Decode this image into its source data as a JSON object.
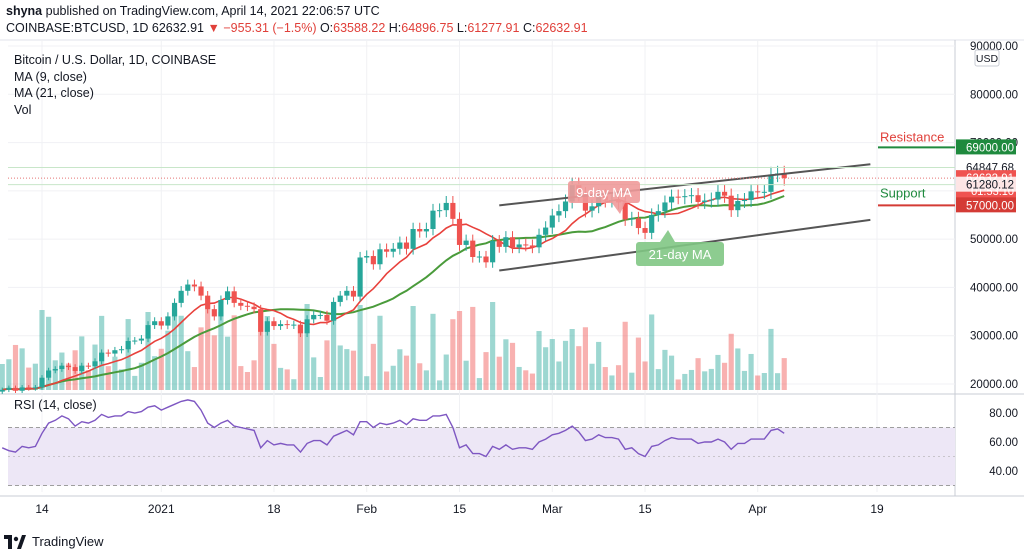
{
  "header": {
    "publisher": "shyna",
    "published_line": "published on TradingView.com, April 14, 2021 22:06:57 UTC",
    "symbol": "COINBASE:BTCUSD, 1D",
    "last": "62632.91",
    "change": "−955.31 (−1.5%)",
    "ohlc": {
      "o": "63588.22",
      "h": "64896.75",
      "l": "61277.91",
      "c": "62632.91"
    }
  },
  "legend": {
    "title": "Bitcoin / U.S. Dollar, 1D, COINBASE",
    "ma9": "MA (9, close)",
    "ma21": "MA (21, close)",
    "vol": "Vol"
  },
  "rsi_label": "RSI (14, close)",
  "footer": {
    "brand": "TradingView"
  },
  "colors": {
    "up": "#26a69a",
    "down": "#ef5350",
    "ma9": "#e8413c",
    "ma21": "#4a9b3b",
    "rsi": "#7e57c2",
    "rsi_band": "#ede7f6",
    "channel": "#555555",
    "resistance": "#1f8a3e",
    "support_line": "#d43b35",
    "price_line": "#e57373"
  },
  "chart_data": [
    {
      "type": "candlestick",
      "title": "Bitcoin / U.S. Dollar, 1D, COINBASE",
      "currency": "USD",
      "y_ticks": [
        20000,
        30000,
        40000,
        50000,
        60000,
        70000,
        80000,
        90000
      ],
      "y_tick_labels": [
        "20000.00",
        "30000.00",
        "40000.00",
        "50000.00",
        "60000.00",
        "70000.00",
        "80000.00",
        "90000.00"
      ],
      "x_tick_labels": [
        "14",
        "2021",
        "18",
        "Feb",
        "15",
        "Mar",
        "15",
        "Apr",
        "19"
      ],
      "x_tick_dates": [
        "2020-12-14",
        "2021-01-01",
        "2021-01-18",
        "2021-02-01",
        "2021-02-15",
        "2021-03-01",
        "2021-03-15",
        "2021-04-01",
        "2021-04-19"
      ],
      "first_date": "2020-12-08",
      "last_date": "2021-04-14",
      "close": [
        18800,
        19200,
        18600,
        19300,
        19100,
        19300,
        21300,
        22800,
        23100,
        23800,
        23500,
        22700,
        23800,
        23700,
        24700,
        26500,
        26300,
        27000,
        27200,
        28900,
        29000,
        29400,
        32200,
        33000,
        32100,
        34000,
        36800,
        39300,
        40600,
        40200,
        38300,
        35500,
        34000,
        37400,
        39200,
        36800,
        36200,
        36000,
        35500,
        30800,
        33000,
        32000,
        32400,
        32200,
        32300,
        30500,
        33400,
        34300,
        34300,
        33100,
        37000,
        38300,
        39300,
        38100,
        46200,
        46500,
        44800,
        47900,
        47400,
        48000,
        49300,
        48000,
        52100,
        51600,
        52100,
        55900,
        56000,
        57500,
        54200,
        48800,
        49700,
        46300,
        46400,
        45200,
        49600,
        48400,
        50400,
        48300,
        48900,
        48700,
        48300,
        50900,
        52400,
        54900,
        55800,
        57800,
        61200,
        59300,
        55900,
        56800,
        58900,
        58000,
        58100,
        57600,
        54100,
        54300,
        52300,
        51300,
        55000,
        55800,
        57600,
        58800,
        58700,
        58900,
        59100,
        57700,
        58000,
        58200,
        59800,
        59000,
        56000,
        57900,
        58100,
        59900,
        59800,
        59800,
        63400,
        63600,
        62632
      ],
      "ma9_label": "9-day MA",
      "ma21_label": "21-day MA",
      "price_labels": [
        {
          "value": 69000,
          "text": "69000.00"
        },
        {
          "value": 64847.68,
          "text": "64847.68"
        },
        {
          "value": 62632.91,
          "text": "62632.91",
          "sub": "01:53:10"
        },
        {
          "value": 61280.12,
          "text": "61280.12"
        },
        {
          "value": 57000,
          "text": "57000.00"
        }
      ],
      "annotations": {
        "resistance": {
          "label": "Resistance",
          "value": 69000
        },
        "support": {
          "label": "Support",
          "value": 57000
        },
        "channel_upper": {
          "from": {
            "date": "2021-02-21",
            "value": 57000
          },
          "to": {
            "date": "2021-04-18",
            "value": 65500
          }
        },
        "channel_lower": {
          "from": {
            "date": "2021-02-21",
            "value": 43500
          },
          "to": {
            "date": "2021-04-18",
            "value": 54000
          }
        }
      }
    },
    {
      "type": "line",
      "title": "RSI (14, close)",
      "y_ticks": [
        40,
        60,
        80
      ],
      "y_tick_labels": [
        "40.00",
        "60.00",
        "80.00"
      ],
      "band": [
        30,
        70
      ],
      "values": [
        56,
        54,
        53,
        57,
        56,
        57,
        66,
        73,
        75,
        78,
        76,
        71,
        74,
        73,
        75,
        79,
        77,
        78,
        78,
        81,
        80,
        81,
        84,
        85,
        82,
        84,
        86,
        88,
        89,
        88,
        82,
        73,
        70,
        73,
        75,
        71,
        70,
        69,
        68,
        56,
        61,
        58,
        59,
        58,
        58,
        53,
        59,
        61,
        61,
        58,
        64,
        66,
        68,
        65,
        74,
        74,
        70,
        73,
        72,
        73,
        75,
        72,
        76,
        75,
        75,
        78,
        78,
        79,
        70,
        56,
        58,
        52,
        52,
        50,
        57,
        55,
        58,
        55,
        56,
        56,
        55,
        60,
        62,
        65,
        66,
        68,
        71,
        67,
        61,
        62,
        65,
        63,
        63,
        62,
        55,
        56,
        52,
        50,
        57,
        58,
        61,
        63,
        62,
        62,
        62,
        59,
        60,
        60,
        62,
        60,
        55,
        59,
        59,
        62,
        62,
        62,
        68,
        69,
        66
      ]
    }
  ]
}
